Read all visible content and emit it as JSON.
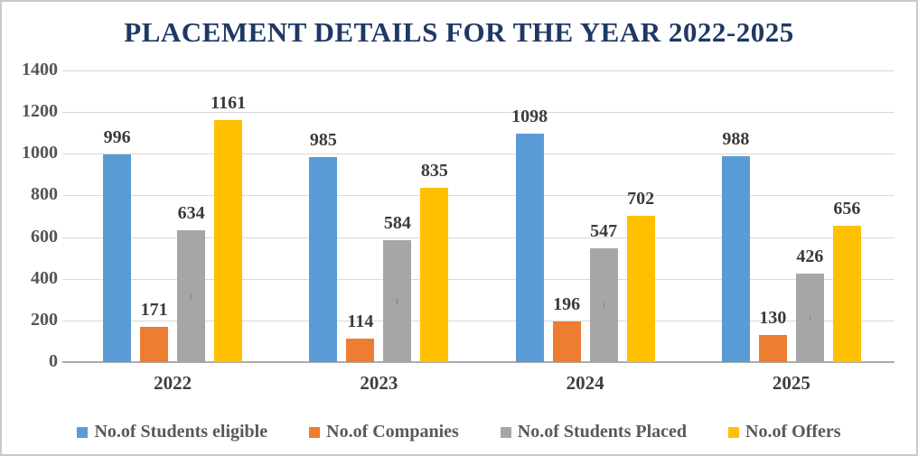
{
  "title": "PLACEMENT DETAILS FOR THE YEAR 2022-2025",
  "colors": {
    "title": "#1F3864",
    "axis_labels": "#555555",
    "data_labels": "#3B3B3B",
    "gridline": "#D9D9D9",
    "axis_line": "#ABABAB",
    "series_blue": "#5B9BD5",
    "series_orange": "#ED7D31",
    "series_gray": "#A6A6A6",
    "series_yellow": "#FFC000"
  },
  "chart_data": {
    "type": "bar",
    "title": "PLACEMENT DETAILS FOR THE YEAR 2022-2025",
    "categories": [
      "2022",
      "2023",
      "2024",
      "2025"
    ],
    "series": [
      {
        "name": "No.of Students eligible",
        "color": "#5B9BD5",
        "pattern": "solid",
        "values": [
          996,
          985,
          1098,
          988
        ]
      },
      {
        "name": "No.of Companies",
        "color": "#ED7D31",
        "pattern": "solid",
        "values": [
          171,
          114,
          196,
          130
        ]
      },
      {
        "name": "No.of Students Placed",
        "color": "#A6A6A6",
        "pattern": "dots",
        "values": [
          634,
          584,
          547,
          426
        ]
      },
      {
        "name": "No.of Offers",
        "color": "#FFC000",
        "pattern": "solid",
        "values": [
          1161,
          835,
          702,
          656
        ]
      }
    ],
    "xlabel": "",
    "ylabel": "",
    "ylim": [
      0,
      1400
    ],
    "ytick_step": 200,
    "yticks": [
      0,
      200,
      400,
      600,
      800,
      1000,
      1200,
      1400
    ],
    "grid": true,
    "data_labels": true,
    "legend_position": "bottom"
  }
}
